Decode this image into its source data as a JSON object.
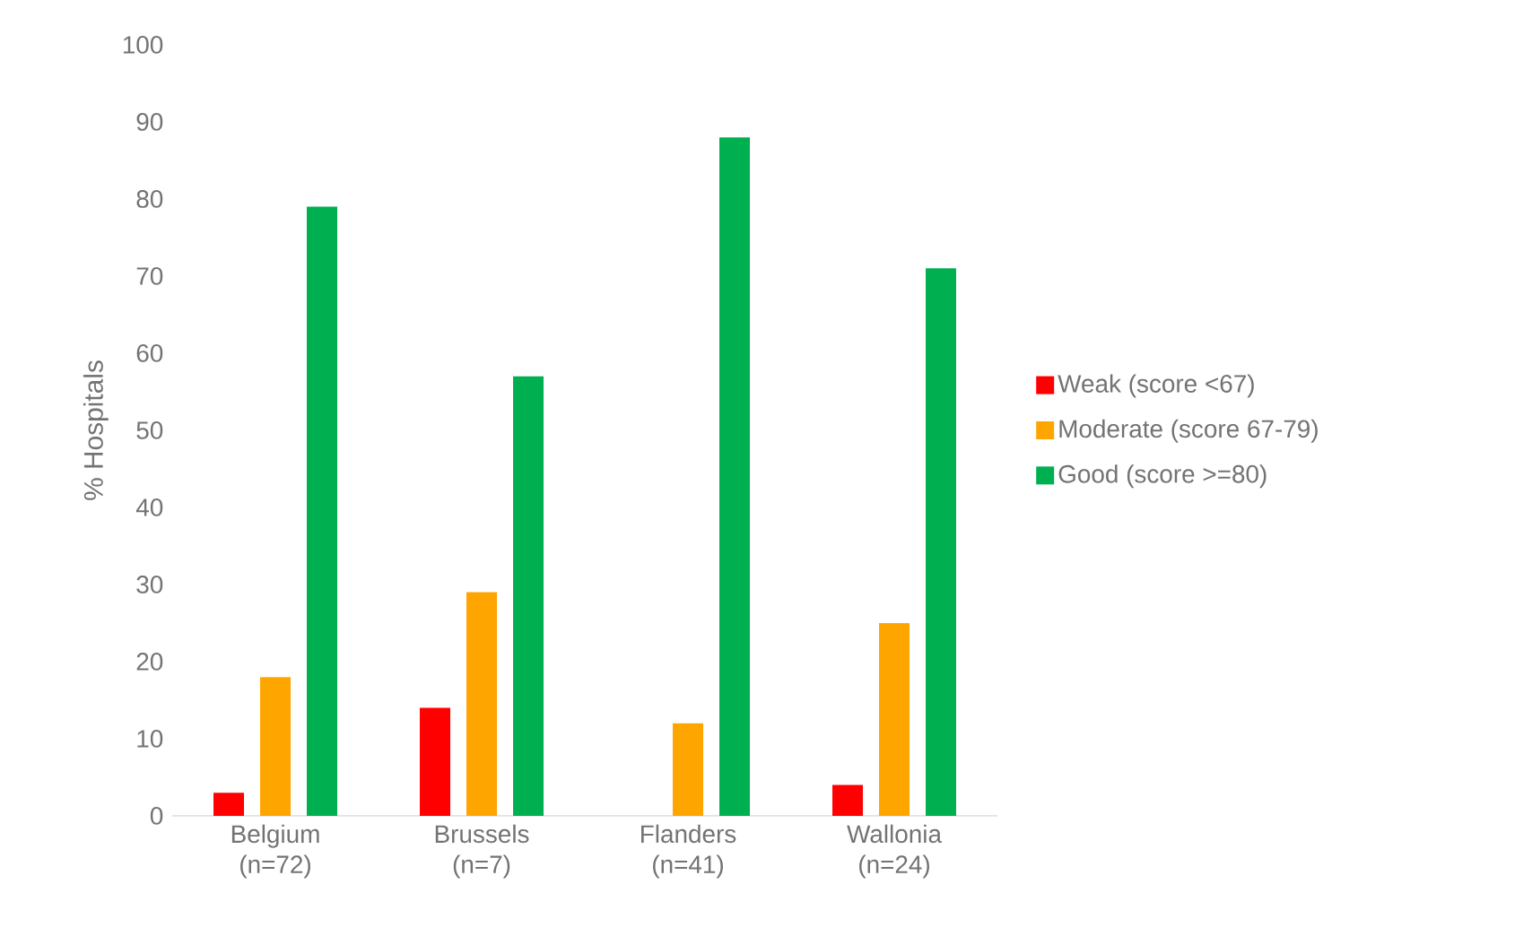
{
  "chart_data": {
    "type": "bar",
    "ylabel": "% Hospitals",
    "categories": [
      "Belgium (n=72)",
      "Brussels (n=7)",
      "Flanders (n=41)",
      "Wallonia (n=24)"
    ],
    "series": [
      {
        "name": "Weak (score <67)",
        "color": "#ff0000",
        "values": [
          3,
          14,
          0,
          4
        ]
      },
      {
        "name": "Moderate (score 67-79)",
        "color": "#ffa500",
        "values": [
          18,
          29,
          12,
          25
        ]
      },
      {
        "name": "Good (score >=80)",
        "color": "#00b050",
        "values": [
          79,
          57,
          88,
          71
        ]
      }
    ],
    "ylim": [
      0,
      100
    ],
    "yticks": [
      0,
      10,
      20,
      30,
      40,
      50,
      60,
      70,
      80,
      90,
      100
    ],
    "legend": "right"
  }
}
